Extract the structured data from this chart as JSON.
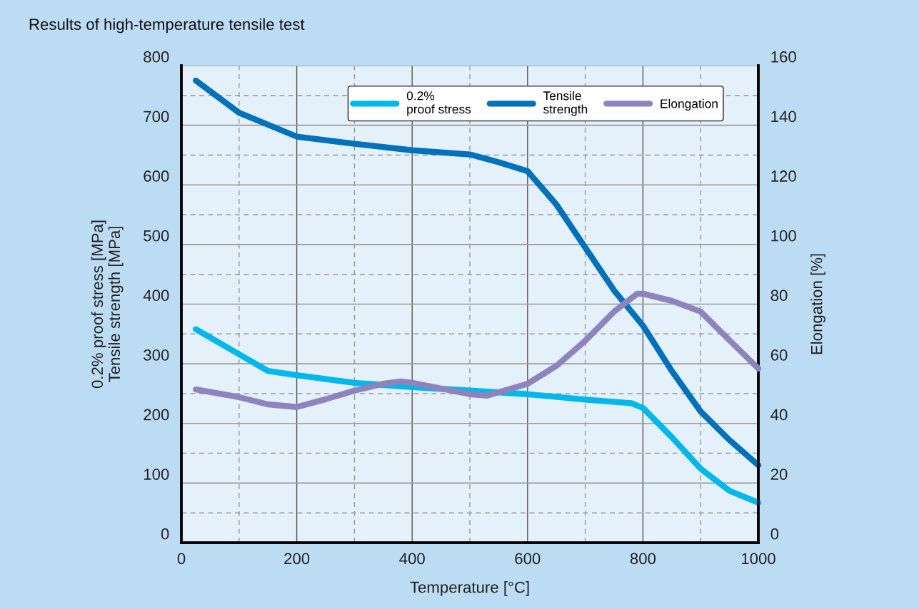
{
  "chart_data": {
    "type": "line",
    "title": "Results of high-temperature tensile test",
    "xlabel": "Temperature [°C]",
    "ylabel": "0.2% proof stress [MPa]\nTensile strength [MPa]",
    "y2label": "Elongation [%]",
    "xlim": [
      0,
      1000
    ],
    "xticks": [
      0,
      200,
      400,
      600,
      800,
      1000
    ],
    "ylim": [
      0,
      800
    ],
    "yticks": [
      0,
      100,
      200,
      300,
      400,
      500,
      600,
      700,
      800
    ],
    "y2lim": [
      0,
      160
    ],
    "y2ticks": [
      0,
      20,
      40,
      60,
      80,
      100,
      120,
      140,
      160
    ],
    "grid": true,
    "legend": "top right",
    "line_style": "solid",
    "marker": "none",
    "series": [
      {
        "name": "0.2%\nproof stress",
        "color": "#00b8ec",
        "x": [
          25,
          100,
          150,
          200,
          300,
          400,
          500,
          600,
          700,
          780,
          800,
          850,
          900,
          950,
          1000
        ],
        "values": [
          358,
          316,
          288,
          281,
          268,
          261,
          255,
          249,
          240,
          234,
          226,
          177,
          124,
          87,
          67
        ]
      },
      {
        "name": "Tensile\nstrength",
        "color": "#0072bc",
        "x": [
          25,
          100,
          200,
          300,
          400,
          500,
          550,
          600,
          650,
          700,
          750,
          800,
          850,
          900,
          950,
          1000
        ],
        "values": [
          775,
          721,
          681,
          669,
          658,
          651,
          638,
          623,
          567,
          495,
          423,
          364,
          288,
          220,
          172,
          130
        ]
      },
      {
        "name": "Elongation",
        "color": "#8e84bd",
        "axis": "y2",
        "x": [
          25,
          100,
          150,
          200,
          250,
          300,
          350,
          380,
          400,
          450,
          500,
          530,
          600,
          650,
          700,
          750,
          790,
          800,
          850,
          900,
          950,
          1000
        ],
        "values": [
          51.4,
          48.8,
          46.4,
          45.5,
          48.1,
          51,
          53.3,
          54.1,
          53.6,
          51.7,
          49.8,
          49.3,
          53.3,
          59.3,
          67.7,
          77.5,
          83.5,
          83.5,
          81.1,
          77.5,
          67.9,
          58.4
        ]
      }
    ]
  }
}
